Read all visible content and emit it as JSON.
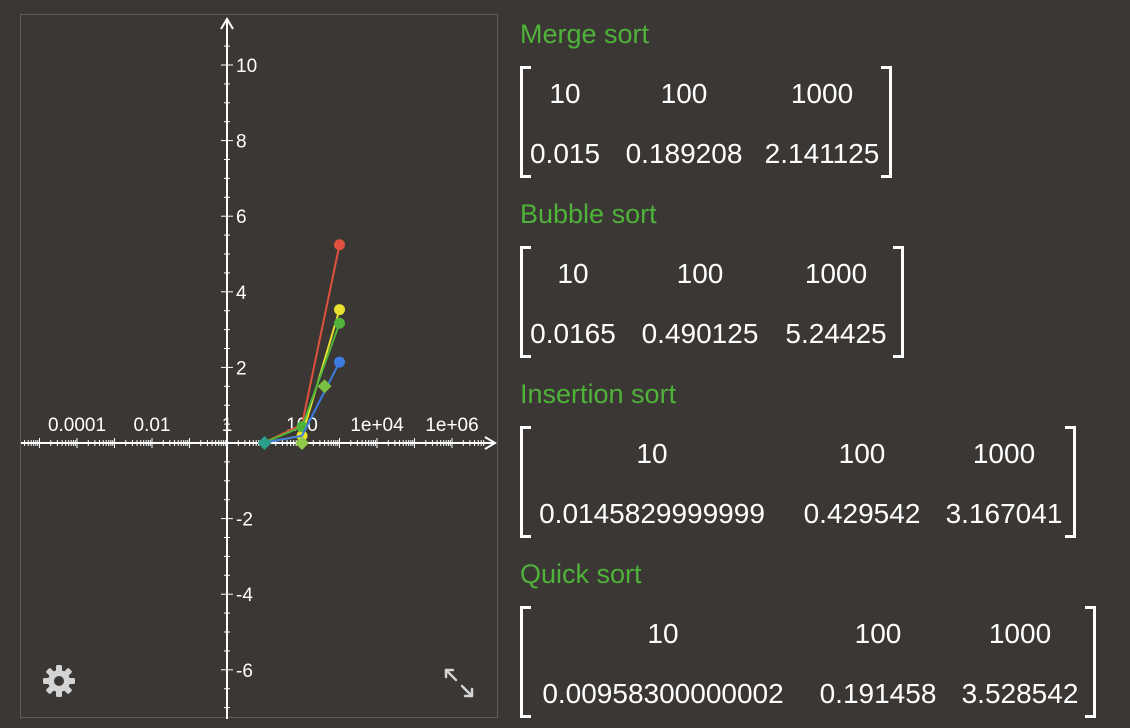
{
  "graph": {
    "x_tick_labels": [
      "0.0001",
      "0.01",
      "1",
      "100",
      "1e+04",
      "1e+06"
    ],
    "y_tick_labels": [
      "10",
      "8",
      "6",
      "4",
      "2",
      "-2",
      "-4",
      "-6"
    ],
    "settings_icon": "gear-icon",
    "expand_icon": "expand-arrows-icon"
  },
  "chart_data": {
    "type": "line",
    "x_scale": "log",
    "y_scale": "linear",
    "xlim": [
      1e-06,
      10000000.0
    ],
    "ylim": [
      -7,
      11
    ],
    "grid": false,
    "series": [
      {
        "color": "#e0523f",
        "x": [
          10,
          100,
          1000
        ],
        "y": [
          0.0165,
          0.490125,
          5.24425
        ],
        "markers": [
          false,
          false,
          true
        ]
      },
      {
        "color": "#e8e22e",
        "x": [
          10,
          100,
          1000
        ],
        "y": [
          0.009583,
          0.191458,
          3.528542
        ],
        "markers": [
          false,
          true,
          true
        ]
      },
      {
        "color": "#4fb33a",
        "x": [
          10,
          100,
          1000
        ],
        "y": [
          0.014583,
          0.429542,
          3.167041
        ],
        "markers": [
          false,
          true,
          true
        ]
      },
      {
        "color": "#3c7be0",
        "x": [
          10,
          100,
          1000
        ],
        "y": [
          0.015,
          0.189208,
          2.141125
        ],
        "markers": [
          false,
          false,
          true
        ]
      }
    ],
    "points": [
      {
        "shape": "diamond",
        "color": "#2e9e8c",
        "x": 10,
        "y": 0
      },
      {
        "shape": "diamond",
        "color": "#93c94a",
        "x": 100,
        "y": 0
      },
      {
        "shape": "diamond",
        "color": "#7ac043",
        "x": 400,
        "y": 1.5
      }
    ]
  },
  "results": [
    {
      "title": "Merge sort",
      "headers": [
        "10",
        "100",
        "1000"
      ],
      "values": [
        "0.015",
        "0.189208",
        "2.141125"
      ]
    },
    {
      "title": "Bubble sort",
      "headers": [
        "10",
        "100",
        "1000"
      ],
      "values": [
        "0.0165",
        "0.490125",
        "5.24425"
      ]
    },
    {
      "title": "Insertion sort",
      "headers": [
        "10",
        "100",
        "1000"
      ],
      "values": [
        "0.0145829999999",
        "0.429542",
        "3.167041"
      ]
    },
    {
      "title": "Quick sort",
      "headers": [
        "10",
        "100",
        "1000"
      ],
      "values": [
        "0.00958300000002",
        "0.191458",
        "3.528542"
      ]
    }
  ],
  "colors": {
    "title": "#4fb33a",
    "background": "#3a3734",
    "axis": "#ffffff"
  }
}
